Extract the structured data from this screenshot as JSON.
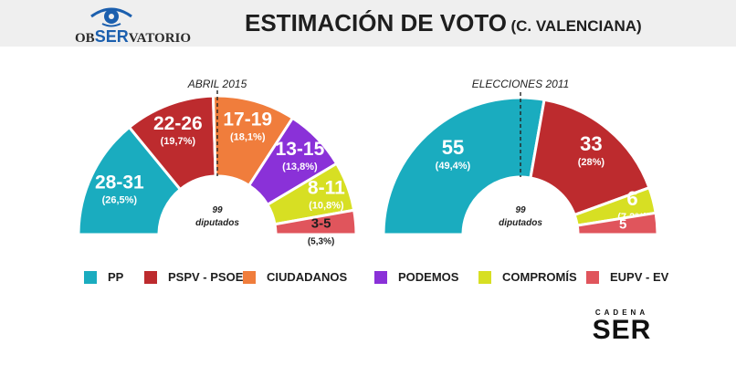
{
  "header": {
    "logo_text_left": "OB",
    "logo_text_accent": "SER",
    "logo_text_right": "VATORIO",
    "title_main": "ESTIMACIÓN DE VOTO",
    "title_sub": "(C. VALENCIANA)"
  },
  "colors": {
    "PP": "#1aacbf",
    "PSPV - PSOE": "#bd2b2e",
    "CIUDADANOS": "#f07d3c",
    "PODEMOS": "#8a31d8",
    "COMPROMÍS": "#d7df23",
    "EUPV - EV": "#e0555c",
    "header_bg": "#efefef"
  },
  "chart_data": [
    {
      "type": "pie",
      "subtype": "semicircle-parliament",
      "title": "ABRIL 2015",
      "center_label": [
        "99",
        "diputados"
      ],
      "slices": [
        {
          "party": "PP",
          "seats": "28-31",
          "percent": "(26,5%)",
          "value": 26.5
        },
        {
          "party": "PSPV - PSOE",
          "seats": "22-26",
          "percent": "(19,7%)",
          "value": 19.7
        },
        {
          "party": "CIUDADANOS",
          "seats": "17-19",
          "percent": "(18,1%)",
          "value": 18.1
        },
        {
          "party": "PODEMOS",
          "seats": "13-15",
          "percent": "(13,8%)",
          "value": 13.8
        },
        {
          "party": "COMPROMÍS",
          "seats": "8-11",
          "percent": "(10,8%)",
          "value": 10.8
        },
        {
          "party": "EUPV - EV",
          "seats": "3-5",
          "percent": "(5,3%)",
          "value": 5.3
        }
      ]
    },
    {
      "type": "pie",
      "subtype": "semicircle-parliament",
      "title": "ELECCIONES 2011",
      "center_label": [
        "99",
        "diputados"
      ],
      "slices": [
        {
          "party": "PP",
          "seats": "55",
          "percent": "(49,4%)",
          "value": 55
        },
        {
          "party": "PSPV - PSOE",
          "seats": "33",
          "percent": "(28%)",
          "value": 33
        },
        {
          "party": "COMPROMÍS",
          "seats": "6",
          "percent": "(7,2%)",
          "value": 6
        },
        {
          "party": "EUPV - EV",
          "seats": "5",
          "percent": "(5,9%)",
          "value": 5
        }
      ]
    }
  ],
  "legend": [
    {
      "label": "PP",
      "color": "#1aacbf"
    },
    {
      "label": "PSPV - PSOE",
      "color": "#bd2b2e"
    },
    {
      "label": "CIUDADANOS",
      "color": "#f07d3c"
    },
    {
      "label": "PODEMOS",
      "color": "#8a31d8"
    },
    {
      "label": "COMPROMÍS",
      "color": "#d7df23"
    },
    {
      "label": "EUPV - EV",
      "color": "#e0555c"
    }
  ],
  "brand": {
    "top": "CADENA",
    "main": "SER"
  }
}
